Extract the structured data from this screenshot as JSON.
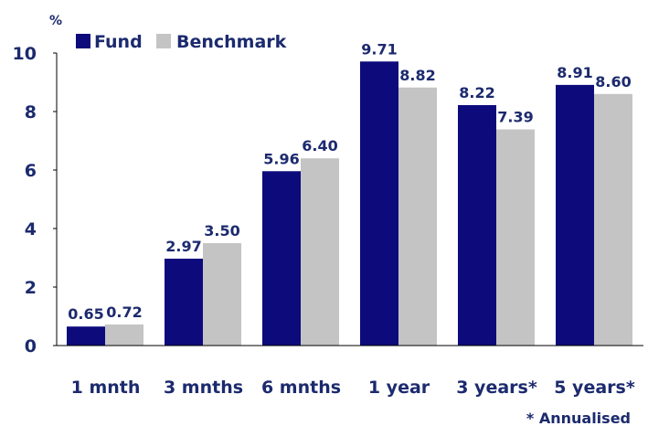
{
  "chart_data": {
    "type": "bar",
    "y_unit_label": "%",
    "categories": [
      "1 mnth",
      "3 mnths",
      "6 mnths",
      "1 year",
      "3 years*",
      "5 years*"
    ],
    "series": [
      {
        "name": "Fund",
        "color": "#0d0b7c",
        "values": [
          0.65,
          2.97,
          5.96,
          9.71,
          8.22,
          8.91
        ]
      },
      {
        "name": "Benchmark",
        "color": "#c4c4c4",
        "values": [
          0.72,
          3.5,
          6.4,
          8.82,
          7.39,
          8.6
        ]
      }
    ],
    "value_labels": [
      [
        "0.65",
        "2.97",
        "5.96",
        "9.71",
        "8.22",
        "8.91"
      ],
      [
        "0.72",
        "3.50",
        "6.40",
        "8.82",
        "7.39",
        "8.60"
      ]
    ],
    "yticks": [
      0,
      2,
      4,
      6,
      8,
      10
    ],
    "ylim": [
      0,
      10
    ],
    "footnote": "* Annualised",
    "legend_position": "top-left",
    "grid": false,
    "label_color": "#1c2a6e"
  }
}
